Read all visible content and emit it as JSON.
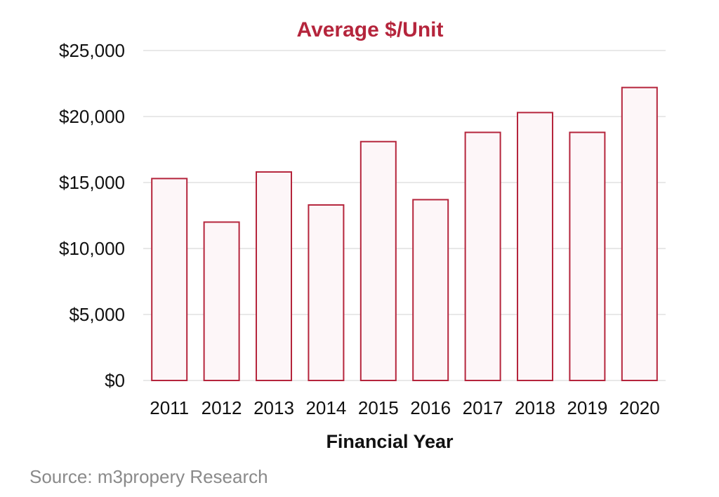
{
  "chart_data": {
    "type": "bar",
    "title": "Average $/Unit",
    "xlabel": "Financial Year",
    "ylabel": "",
    "categories": [
      "2011",
      "2012",
      "2013",
      "2014",
      "2015",
      "2016",
      "2017",
      "2018",
      "2019",
      "2020"
    ],
    "values": [
      15300,
      12000,
      15800,
      13300,
      18100,
      13700,
      18800,
      20300,
      18800,
      22200
    ],
    "ylim": [
      0,
      25000
    ],
    "yticks": [
      0,
      5000,
      10000,
      15000,
      20000,
      25000
    ],
    "ytick_labels": [
      "$0",
      "$5,000",
      "$10,000",
      "$15,000",
      "$20,000",
      "$25,000"
    ],
    "grid": true,
    "legend": "none",
    "colors": {
      "bar_fill": "#fdf6f8",
      "bar_stroke": "#b5253c",
      "title": "#b5253c",
      "grid": "#d9d9d9"
    }
  },
  "source": "Source: m3propery Research"
}
